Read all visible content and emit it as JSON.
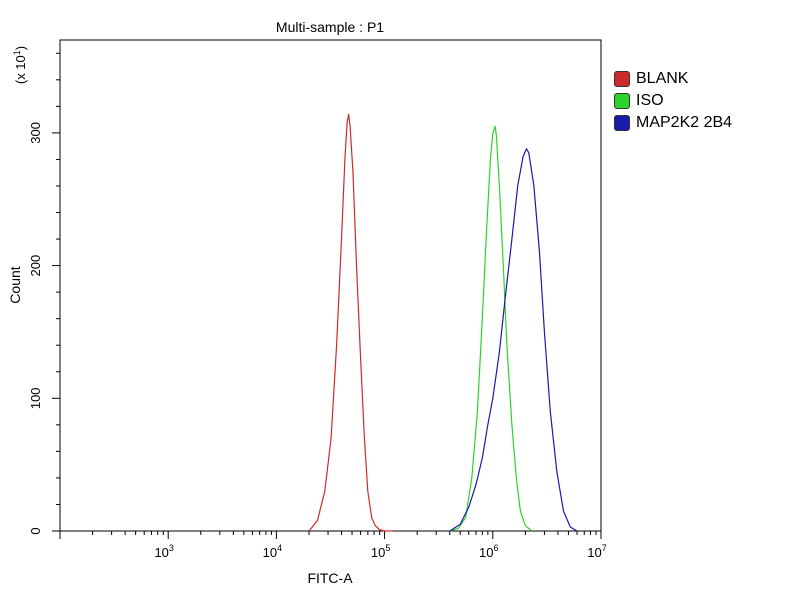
{
  "chart_data": {
    "type": "line",
    "title": "Multi-sample : P1",
    "xlabel": "FITC-A",
    "ylabel": "Count",
    "y_multiplier_label": "(x 10",
    "y_multiplier_exp": "1",
    "x_scale": "log",
    "xlim": [
      100,
      10000000
    ],
    "ylim": [
      0,
      370
    ],
    "x_tick_labels": [
      {
        "base": "10",
        "exp": "3",
        "value": 1000
      },
      {
        "base": "10",
        "exp": "4",
        "value": 10000
      },
      {
        "base": "10",
        "exp": "5",
        "value": 100000
      },
      {
        "base": "10",
        "exp": "6",
        "value": 1000000
      },
      {
        "base": "10",
        "exp": "7",
        "value": 10000000
      }
    ],
    "y_ticks": [
      0,
      100,
      200,
      300
    ],
    "legend_position": "top-right",
    "series": [
      {
        "name": "BLANK",
        "color": "#cc2a2a",
        "x": [
          20000,
          24000,
          28000,
          32000,
          36000,
          40000,
          43000,
          45000,
          46500,
          48000,
          51000,
          55000,
          60000,
          65000,
          70000,
          76000,
          82000,
          90000,
          100000,
          120000
        ],
        "y": [
          0,
          8,
          30,
          70,
          140,
          220,
          280,
          308,
          314,
          305,
          270,
          200,
          130,
          70,
          30,
          10,
          4,
          1,
          0,
          0
        ]
      },
      {
        "name": "ISO",
        "color": "#2bd42b",
        "x": [
          400000,
          480000,
          560000,
          640000,
          720000,
          800000,
          880000,
          950000,
          1000000,
          1050000,
          1080000,
          1150000,
          1250000,
          1350000,
          1500000,
          1650000,
          1800000,
          2000000,
          2300000
        ],
        "y": [
          0,
          2,
          10,
          40,
          90,
          160,
          230,
          280,
          300,
          305,
          298,
          260,
          200,
          140,
          80,
          40,
          15,
          4,
          0
        ]
      },
      {
        "name": "MAP2K2 2B4",
        "color": "#1a1aaa",
        "x": [
          400000,
          500000,
          600000,
          700000,
          800000,
          900000,
          1000000,
          1150000,
          1300000,
          1500000,
          1700000,
          1900000,
          2050000,
          2150000,
          2400000,
          2700000,
          3000000,
          3400000,
          3900000,
          4500000,
          5200000,
          6000000
        ],
        "y": [
          0,
          5,
          18,
          35,
          55,
          80,
          100,
          135,
          175,
          220,
          260,
          282,
          288,
          285,
          260,
          210,
          150,
          90,
          45,
          15,
          3,
          0
        ]
      }
    ]
  }
}
